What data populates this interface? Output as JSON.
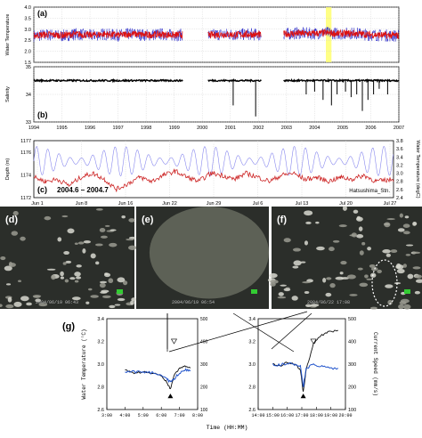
{
  "chart_data": [
    {
      "id": "a",
      "type": "line",
      "panel_label": "(a)",
      "ylabel": "Water Temperature",
      "ylim": [
        1.5,
        4.0
      ],
      "yticks": [
        "1.5",
        "2.0",
        "2.5",
        "3.0",
        "3.5",
        "4.0"
      ],
      "x_ticks": [
        "1994",
        "1995",
        "1996",
        "1997",
        "1998",
        "1999",
        "2000",
        "2001",
        "2002",
        "2003",
        "2004",
        "2005",
        "2006",
        "2007"
      ],
      "segments": [
        [
          1994.0,
          1999.3
        ],
        [
          2000.2,
          2002.1
        ],
        [
          2002.9,
          2007.0
        ]
      ],
      "series": [
        {
          "color": "#3333cc",
          "values": [
            [
              1994.0,
              2.7
            ],
            [
              1994.5,
              2.75
            ],
            [
              1995.0,
              2.7
            ],
            [
              1995.5,
              2.78
            ],
            [
              1996.0,
              2.72
            ],
            [
              1996.5,
              2.78
            ],
            [
              1997.0,
              2.72
            ],
            [
              1997.5,
              2.8
            ],
            [
              1998.0,
              2.73
            ],
            [
              1998.5,
              2.78
            ],
            [
              1999.0,
              2.72
            ],
            [
              1999.3,
              2.75
            ],
            [
              2000.2,
              2.72
            ],
            [
              2000.7,
              2.78
            ],
            [
              2001.2,
              2.75
            ],
            [
              2001.7,
              2.78
            ],
            [
              2002.1,
              2.73
            ],
            [
              2002.9,
              2.78
            ],
            [
              2003.4,
              2.82
            ],
            [
              2003.9,
              2.8
            ],
            [
              2004.4,
              2.84
            ],
            [
              2004.9,
              2.8
            ],
            [
              2005.4,
              2.82
            ],
            [
              2005.9,
              2.75
            ],
            [
              2006.4,
              2.72
            ],
            [
              2007.0,
              2.7
            ]
          ]
        },
        {
          "color": "#dd1111",
          "values": [
            [
              1994.0,
              2.72
            ],
            [
              1994.5,
              2.76
            ],
            [
              1995.0,
              2.72
            ],
            [
              1995.5,
              2.78
            ],
            [
              1996.0,
              2.73
            ],
            [
              1996.5,
              2.78
            ],
            [
              1997.0,
              2.73
            ],
            [
              1997.5,
              2.79
            ],
            [
              1998.0,
              2.74
            ],
            [
              1998.5,
              2.77
            ],
            [
              1999.0,
              2.73
            ],
            [
              1999.3,
              2.75
            ],
            [
              2000.2,
              2.73
            ],
            [
              2000.7,
              2.77
            ],
            [
              2001.2,
              2.75
            ],
            [
              2001.7,
              2.77
            ],
            [
              2002.1,
              2.74
            ],
            [
              2002.9,
              2.78
            ],
            [
              2003.4,
              2.81
            ],
            [
              2003.9,
              2.8
            ],
            [
              2004.4,
              2.83
            ],
            [
              2004.9,
              2.8
            ],
            [
              2005.4,
              2.81
            ],
            [
              2005.9,
              2.76
            ],
            [
              2006.4,
              2.73
            ],
            [
              2007.0,
              2.71
            ]
          ]
        }
      ],
      "highlight": {
        "x": [
          2004.4,
          2004.6
        ],
        "color": "#ffff66"
      }
    },
    {
      "id": "b",
      "type": "line",
      "panel_label": "(b)",
      "ylabel": "Salinity",
      "ylim": [
        33.0,
        35.0
      ],
      "yticks": [
        "33",
        "34",
        "35"
      ],
      "x_ticks": [
        "1994",
        "1995",
        "1996",
        "1997",
        "1998",
        "1999",
        "2000",
        "2001",
        "2002",
        "2003",
        "2004",
        "2005",
        "2006",
        "2007"
      ],
      "segments": [
        [
          1994.0,
          1999.3
        ],
        [
          2000.2,
          2002.1
        ],
        [
          2002.9,
          2007.0
        ]
      ],
      "baseline": 34.5,
      "series": [
        {
          "color": "#000000",
          "values": [
            [
              1994.0,
              34.5
            ],
            [
              1996.0,
              34.51
            ],
            [
              1999.3,
              34.5
            ],
            [
              2000.2,
              34.5
            ],
            [
              2002.1,
              34.5
            ],
            [
              2002.9,
              34.52
            ],
            [
              2007.0,
              34.5
            ]
          ]
        }
      ],
      "spikes": [
        [
          2001.1,
          33.6
        ],
        [
          2001.9,
          33.2
        ],
        [
          2003.7,
          34.0
        ],
        [
          2004.0,
          34.1
        ],
        [
          2004.3,
          33.8
        ],
        [
          2004.6,
          33.6
        ],
        [
          2004.8,
          34.0
        ],
        [
          2005.1,
          34.1
        ],
        [
          2005.3,
          33.9
        ],
        [
          2005.5,
          34.0
        ],
        [
          2005.7,
          33.4
        ],
        [
          2005.9,
          33.8
        ],
        [
          2006.1,
          34.0
        ],
        [
          2006.3,
          34.2
        ],
        [
          2006.6,
          34.0
        ]
      ]
    },
    {
      "id": "c",
      "type": "line",
      "panel_label": "(c)",
      "period_label": "2004.6 – 2004.7",
      "station_label": "Hatsushima_Stn.",
      "ylabel_left": "Depth (m)",
      "ylabel_right": "Water Temperature (degC)",
      "ylim_left": [
        1172,
        1177
      ],
      "yticks_left": [
        "1172",
        "1174",
        "1176",
        "1177"
      ],
      "ylim_right": [
        2.4,
        3.8
      ],
      "yticks_right": [
        "2.4",
        "2.6",
        "2.8",
        "3.0",
        "3.2",
        "3.4",
        "3.6",
        "3.8"
      ],
      "x_ticks": [
        "Jun 1",
        "Jun 8",
        "Jun 16",
        "Jun 22",
        "Jun 29",
        "Jul 6",
        "Jul 13",
        "Jul 20",
        "Jul 27"
      ],
      "xlim_days": [
        0,
        61
      ],
      "depth_series": {
        "color": "#8888ee",
        "tidal_period_days": 1.0,
        "amplitude": 1.3,
        "mean": 1175.2
      },
      "temp_series": {
        "color": "#cc2222",
        "values": [
          [
            0,
            2.9
          ],
          [
            2,
            2.8
          ],
          [
            4,
            2.85
          ],
          [
            6,
            2.7
          ],
          [
            8,
            2.9
          ],
          [
            10,
            3.0
          ],
          [
            12,
            2.85
          ],
          [
            14,
            2.6
          ],
          [
            16,
            2.75
          ],
          [
            18,
            2.9
          ],
          [
            20,
            2.8
          ],
          [
            22,
            2.95
          ],
          [
            24,
            3.05
          ],
          [
            26,
            2.9
          ],
          [
            28,
            2.8
          ],
          [
            30,
            3.0
          ],
          [
            32,
            2.95
          ],
          [
            34,
            2.85
          ],
          [
            36,
            3.0
          ],
          [
            38,
            2.9
          ],
          [
            40,
            2.8
          ],
          [
            42,
            2.95
          ],
          [
            44,
            3.0
          ],
          [
            46,
            2.85
          ],
          [
            48,
            2.9
          ],
          [
            50,
            2.8
          ],
          [
            52,
            2.9
          ],
          [
            54,
            2.85
          ],
          [
            56,
            2.95
          ],
          [
            58,
            2.8
          ],
          [
            61,
            2.85
          ]
        ]
      }
    },
    {
      "id": "g",
      "type": "line",
      "panel_label": "(g)",
      "ylabel_left": "Water Temperature (°C)",
      "ylabel_right": "Current Speed (mm/s)",
      "xlabel": "Time (HH:MM)",
      "ylim_left": [
        2.6,
        3.4
      ],
      "yticks_left": [
        "2.6",
        "2.8",
        "3.0",
        "3.2",
        "3.4"
      ],
      "ylim_right": [
        100,
        500
      ],
      "yticks_right": [
        "100",
        "200",
        "300",
        "400",
        "500"
      ],
      "left_plot": {
        "x_ticks": [
          "3:00",
          "4:00",
          "5:00",
          "6:00",
          "7:00",
          "8:00"
        ],
        "xlim_hours": [
          3,
          8
        ],
        "temp": [
          [
            4.0,
            2.95
          ],
          [
            4.5,
            2.92
          ],
          [
            5.0,
            2.93
          ],
          [
            5.5,
            2.92
          ],
          [
            6.0,
            2.9
          ],
          [
            6.3,
            2.84
          ],
          [
            6.5,
            2.78
          ],
          [
            6.7,
            2.9
          ],
          [
            7.0,
            2.96
          ],
          [
            7.3,
            2.98
          ],
          [
            7.6,
            2.97
          ]
        ],
        "speed": [
          [
            4.0,
            270
          ],
          [
            4.5,
            265
          ],
          [
            5.0,
            268
          ],
          [
            5.5,
            262
          ],
          [
            6.0,
            255
          ],
          [
            6.3,
            235
          ],
          [
            6.5,
            220
          ],
          [
            6.7,
            235
          ],
          [
            7.0,
            260
          ],
          [
            7.3,
            275
          ],
          [
            7.6,
            272
          ]
        ]
      },
      "right_plot": {
        "x_ticks": [
          "14:00",
          "15:00",
          "16:00",
          "17:00",
          "18:00",
          "19:00",
          "20:00"
        ],
        "xlim_hours": [
          14,
          20
        ],
        "temp": [
          [
            15.0,
            3.0
          ],
          [
            15.5,
            2.98
          ],
          [
            16.0,
            3.02
          ],
          [
            16.5,
            3.0
          ],
          [
            16.9,
            2.95
          ],
          [
            17.1,
            2.75
          ],
          [
            17.3,
            2.95
          ],
          [
            17.8,
            3.18
          ],
          [
            18.3,
            3.25
          ],
          [
            18.8,
            3.28
          ],
          [
            19.5,
            3.3
          ]
        ],
        "speed": [
          [
            15.0,
            300
          ],
          [
            15.5,
            295
          ],
          [
            16.0,
            305
          ],
          [
            16.5,
            300
          ],
          [
            16.9,
            290
          ],
          [
            17.1,
            200
          ],
          [
            17.3,
            280
          ],
          [
            17.8,
            300
          ],
          [
            18.3,
            290
          ],
          [
            18.8,
            285
          ],
          [
            19.5,
            280
          ]
        ]
      }
    }
  ],
  "photos": [
    {
      "panel_label": "(d)",
      "timestamp": "2004/06/19 06:43"
    },
    {
      "panel_label": "(e)",
      "timestamp": "2004/06/19 06:54"
    },
    {
      "panel_label": "(f)",
      "timestamp": "2004/06/22 17:08"
    }
  ],
  "colors": {
    "frame": "#000000",
    "grid": "#cccccc",
    "photo_bg": "#2b2e2a",
    "photo_marker": "#33cc33"
  }
}
